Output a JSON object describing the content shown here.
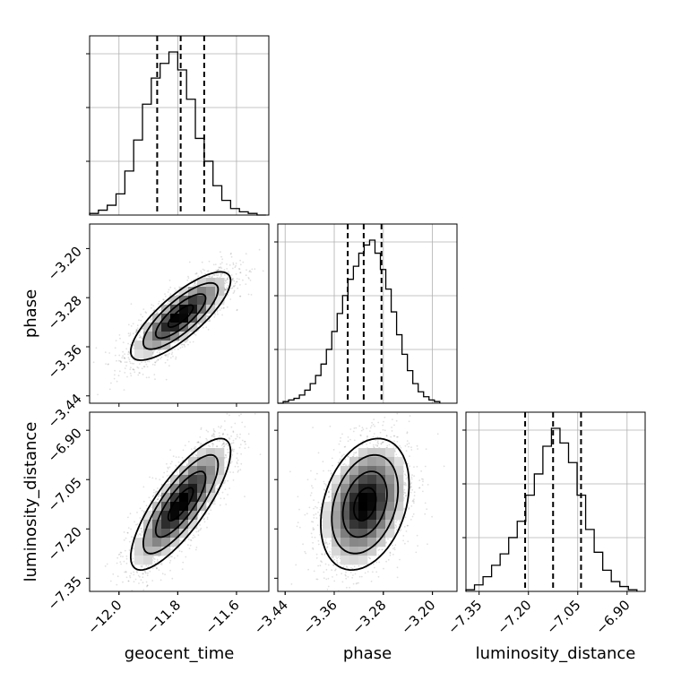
{
  "chart_data": {
    "type": "corner",
    "parameters": [
      "geocent_time",
      "phase",
      "luminosity_distance"
    ],
    "grid": true,
    "quantile_lines": "dashed",
    "axes": {
      "geocent_time": {
        "range": [
          -12.1,
          -11.49
        ],
        "ticks": [
          -12.0,
          -11.8,
          -11.6
        ],
        "tick_labels": [
          "−12.0",
          "−11.8",
          "−11.6"
        ],
        "quantiles": [
          -11.87,
          -11.79,
          -11.71
        ]
      },
      "phase": {
        "range": [
          -3.452,
          -3.16
        ],
        "ticks": [
          -3.44,
          -3.36,
          -3.28,
          -3.2
        ],
        "tick_labels": [
          "−3.44",
          "−3.36",
          "−3.28",
          "−3.20"
        ],
        "quantiles": [
          -3.338,
          -3.312,
          -3.283
        ]
      },
      "luminosity_distance": {
        "range": [
          -7.39,
          -6.845
        ],
        "ticks": [
          -7.35,
          -7.2,
          -7.05,
          -6.9
        ],
        "tick_labels": [
          "−7.35",
          "−7.20",
          "−7.05",
          "−6.90"
        ],
        "quantiles": [
          -7.21,
          -7.125,
          -7.04
        ]
      }
    },
    "histograms": {
      "geocent_time": {
        "bin_edges": [
          -12.1,
          -12.07,
          -12.04,
          -12.01,
          -11.98,
          -11.95,
          -11.92,
          -11.89,
          -11.86,
          -11.83,
          -11.8,
          -11.77,
          -11.74,
          -11.71,
          -11.68,
          -11.65,
          -11.62,
          -11.59,
          -11.56,
          -11.53,
          -11.5
        ],
        "counts": [
          1,
          3,
          6,
          13,
          27,
          46,
          68,
          84,
          93,
          100,
          89,
          71,
          47,
          33,
          18,
          9,
          4,
          2,
          1,
          0
        ]
      },
      "phase": {
        "bin_edges": [
          -3.452,
          -3.4432,
          -3.4344,
          -3.4256,
          -3.4168,
          -3.408,
          -3.3992,
          -3.3904,
          -3.3816,
          -3.3728,
          -3.364,
          -3.3552,
          -3.3464,
          -3.3376,
          -3.3288,
          -3.32,
          -3.3112,
          -3.3024,
          -3.2936,
          -3.2848,
          -3.276,
          -3.2672,
          -3.2584,
          -3.2496,
          -3.2408,
          -3.232,
          -3.2232,
          -3.2144,
          -3.2056,
          -3.1968,
          -3.188
        ],
        "counts": [
          0,
          1,
          2,
          3,
          5,
          8,
          12,
          17,
          24,
          33,
          44,
          55,
          66,
          76,
          84,
          92,
          97,
          100,
          92,
          82,
          70,
          56,
          42,
          30,
          20,
          12,
          7,
          4,
          2,
          1
        ]
      },
      "luminosity_distance": {
        "bin_edges": [
          -7.39,
          -7.364,
          -7.338,
          -7.312,
          -7.286,
          -7.26,
          -7.234,
          -7.208,
          -7.182,
          -7.156,
          -7.13,
          -7.104,
          -7.078,
          -7.052,
          -7.026,
          -7.0,
          -6.974,
          -6.948,
          -6.922,
          -6.896,
          -6.87
        ],
        "counts": [
          1,
          4,
          9,
          16,
          23,
          33,
          43,
          59,
          72,
          89,
          100,
          91,
          79,
          59,
          38,
          24,
          13,
          6,
          3,
          1
        ]
      }
    },
    "pairs": [
      {
        "x": "geocent_time",
        "y": "phase",
        "mean": [
          -11.79,
          -3.31
        ],
        "std": [
          0.085,
          0.036
        ],
        "correlation": 0.8
      },
      {
        "x": "geocent_time",
        "y": "luminosity_distance",
        "mean": [
          -11.79,
          -7.125
        ],
        "std": [
          0.085,
          0.1
        ],
        "correlation": 0.8
      },
      {
        "x": "phase",
        "y": "luminosity_distance",
        "mean": [
          -3.31,
          -7.125
        ],
        "std": [
          0.036,
          0.1
        ],
        "correlation": 0.3
      }
    ]
  }
}
